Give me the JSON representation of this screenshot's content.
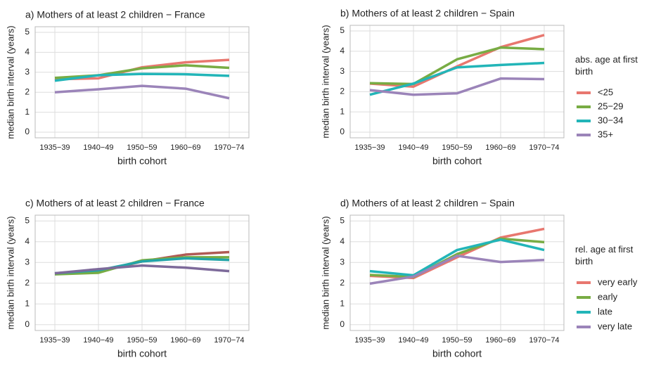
{
  "chart_data": [
    {
      "type": "line",
      "title": "a) Mothers of at least 2 children − France",
      "x_label": "birth cohort",
      "y_label": "median birth interval (years)",
      "categories": [
        "1935−39",
        "1940−49",
        "1950−59",
        "1960−69",
        "1970−74"
      ],
      "ylim": [
        -0.28,
        5.28
      ],
      "yticks": [
        0,
        1,
        2,
        3,
        4,
        5
      ],
      "grid": true,
      "series": [
        {
          "color": "#e8776f",
          "values": [
            2.65,
            2.7,
            3.25,
            3.5,
            3.62
          ]
        },
        {
          "color": "#78ac44",
          "values": [
            2.72,
            2.85,
            3.2,
            3.35,
            3.22
          ]
        },
        {
          "color": "#22b5b8",
          "values": [
            2.58,
            2.85,
            2.92,
            2.9,
            2.82
          ]
        },
        {
          "color": "#9b84b9",
          "values": [
            2.0,
            2.15,
            2.32,
            2.18,
            1.7
          ]
        }
      ]
    },
    {
      "type": "line",
      "title": "b) Mothers of at least 2 children − Spain",
      "x_label": "birth cohort",
      "y_label": "median birth interval (years)",
      "categories": [
        "1935−39",
        "1940−49",
        "1950−59",
        "1960−69",
        "1970−74"
      ],
      "ylim": [
        -0.28,
        5.28
      ],
      "yticks": [
        0,
        1,
        2,
        3,
        4,
        5
      ],
      "grid": true,
      "legend_title": "abs. age at first birth",
      "legend": "right",
      "series": [
        {
          "name": "<25",
          "color": "#e8776f",
          "values": [
            2.4,
            2.25,
            3.25,
            4.2,
            4.8
          ]
        },
        {
          "name": "25−29",
          "color": "#78ac44",
          "values": [
            2.42,
            2.38,
            3.6,
            4.18,
            4.1
          ]
        },
        {
          "name": "30−34",
          "color": "#22b5b8",
          "values": [
            1.85,
            2.4,
            3.2,
            3.32,
            3.42
          ]
        },
        {
          "name": "35+",
          "color": "#9b84b9",
          "values": [
            2.08,
            1.85,
            1.92,
            2.65,
            2.62
          ]
        }
      ]
    },
    {
      "type": "line",
      "title": "c) Mothers of at least 2 children − France",
      "x_label": "birth cohort",
      "y_label": "median birth interval (years)",
      "categories": [
        "1935−39",
        "1940−49",
        "1950−59",
        "1960−69",
        "1970−74"
      ],
      "ylim": [
        -0.28,
        5.28
      ],
      "yticks": [
        0,
        1,
        2,
        3,
        4,
        5
      ],
      "grid": true,
      "series": [
        {
          "color": "#b05a55",
          "values": [
            2.45,
            2.55,
            3.05,
            3.38,
            3.5
          ]
        },
        {
          "color": "#78ac44",
          "values": [
            2.43,
            2.5,
            3.1,
            3.25,
            3.25
          ]
        },
        {
          "color": "#22a5a8",
          "values": [
            2.48,
            2.62,
            3.05,
            3.2,
            3.12
          ]
        },
        {
          "color": "#7d6a9a",
          "values": [
            2.48,
            2.68,
            2.85,
            2.75,
            2.58
          ]
        }
      ]
    },
    {
      "type": "line",
      "title": "d) Mothers of at least 2 children − Spain",
      "x_label": "birth cohort",
      "y_label": "median birth interval (years)",
      "categories": [
        "1935−39",
        "1940−49",
        "1950−59",
        "1960−69",
        "1970−74"
      ],
      "ylim": [
        -0.28,
        5.28
      ],
      "yticks": [
        0,
        1,
        2,
        3,
        4,
        5
      ],
      "grid": true,
      "legend_title": "rel. age at first birth",
      "legend": "right",
      "series": [
        {
          "name": "very early",
          "color": "#e8776f",
          "values": [
            2.35,
            2.25,
            3.25,
            4.2,
            4.62
          ]
        },
        {
          "name": "early",
          "color": "#78ac44",
          "values": [
            2.4,
            2.3,
            3.4,
            4.15,
            3.98
          ]
        },
        {
          "name": "late",
          "color": "#22b5b8",
          "values": [
            2.58,
            2.38,
            3.6,
            4.1,
            3.6
          ]
        },
        {
          "name": "very late",
          "color": "#9b84b9",
          "values": [
            1.98,
            2.32,
            3.32,
            3.02,
            3.12
          ]
        }
      ]
    }
  ]
}
